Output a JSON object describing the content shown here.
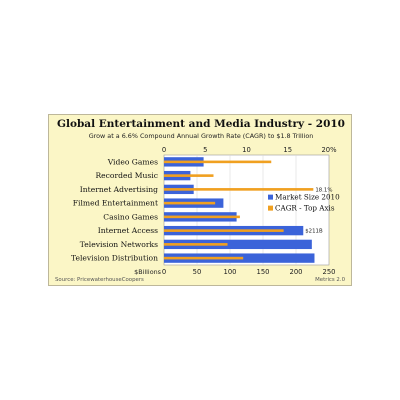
{
  "card": {
    "title": "Global Entertainment and Media Industry - 2010",
    "subtitle": "Grow at a 6.6% Compound Annual Growth Rate (CAGR) to $1.8 Trillion",
    "source": "Source: PricewaterhouseCoopers",
    "brand": "Metrics 2.0"
  },
  "chart_data": {
    "type": "bar",
    "orientation": "horizontal",
    "categories": [
      "Video Games",
      "Recorded Music",
      "Internet Advertising",
      "Filmed Entertainment",
      "Casino Games",
      "Internet Access",
      "Television Networks",
      "Television Distribution"
    ],
    "series": [
      {
        "name": "Market Size 2010",
        "axis": "bottom",
        "color": "#3b63d9",
        "values": [
          60,
          40,
          45,
          90,
          110,
          211,
          224,
          228
        ]
      },
      {
        "name": "CAGR - Top Axis",
        "axis": "top",
        "color": "#f0a020",
        "values": [
          13,
          6,
          18.1,
          6.2,
          9.2,
          14.5,
          7.7,
          9.6
        ]
      }
    ],
    "data_labels": [
      {
        "category": "Internet Advertising",
        "series": "CAGR - Top Axis",
        "text": "18.1%"
      },
      {
        "category": "Internet Access",
        "series": "Market Size 2010",
        "text": "$211B"
      }
    ],
    "bottom_axis": {
      "label": "$Billions",
      "range": [
        0,
        250
      ],
      "ticks": [
        0,
        50,
        100,
        150,
        200,
        250
      ],
      "tick_labels": [
        "0",
        "50",
        "100",
        "150",
        "200",
        "250"
      ]
    },
    "top_axis": {
      "range": [
        0,
        20
      ],
      "ticks": [
        0,
        5,
        10,
        15,
        20
      ],
      "tick_labels": [
        "0",
        "5",
        "10",
        "15",
        "20%"
      ]
    },
    "grid": true,
    "legend_position": "right-upper-inside-plot"
  }
}
